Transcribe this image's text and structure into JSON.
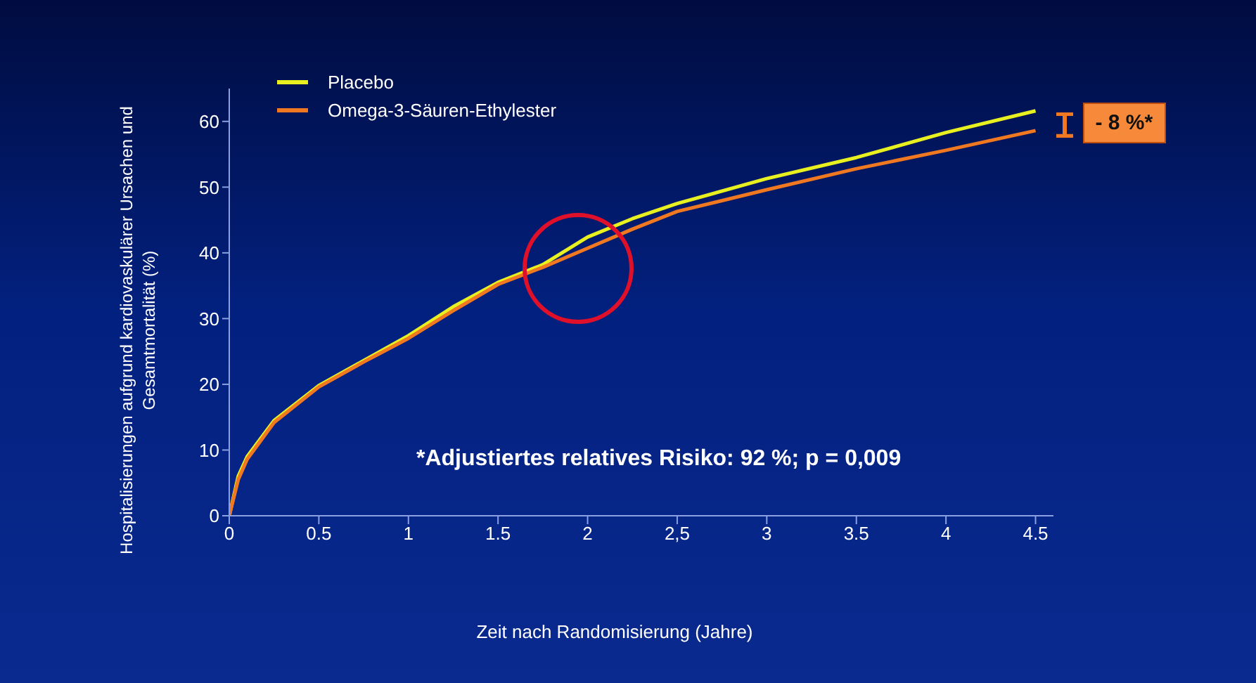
{
  "chart_data": {
    "type": "line",
    "xlabel": "Zeit nach Randomisierung (Jahre)",
    "ylabel": "Hospitalisierungen aufgrund kardiovaskulärer Ursachen und Gesamtmortalität (%)",
    "x": [
      0,
      0.05,
      0.1,
      0.25,
      0.5,
      0.75,
      1,
      1.25,
      1.5,
      1.75,
      2,
      2.25,
      2.5,
      3,
      3.5,
      4,
      4.5
    ],
    "series": [
      {
        "name": "Placebo",
        "color": "#e8f020",
        "values": [
          0,
          6,
          9,
          14.5,
          19.8,
          23.6,
          27.4,
          31.8,
          35.5,
          38.2,
          42.4,
          45.2,
          47.5,
          51.3,
          54.5,
          58.3,
          61.6
        ]
      },
      {
        "name": "Omega-3-Säuren-Ethylester",
        "color": "#f07820",
        "values": [
          0,
          5.5,
          8.6,
          14.2,
          19.6,
          23.4,
          27,
          31.2,
          35.2,
          37.8,
          40.7,
          43.6,
          46.3,
          49.6,
          52.8,
          55.6,
          58.6
        ]
      }
    ],
    "xlim": [
      0,
      4.6
    ],
    "xticks": [
      0,
      {
        "value": 0.5,
        "label": "0.5"
      },
      1,
      {
        "value": 1.5,
        "label": "1.5"
      },
      2,
      {
        "value": 2.5,
        "label": "2,5"
      },
      3,
      {
        "value": 3.5,
        "label": "3.5"
      },
      4,
      {
        "value": 4.5,
        "label": "4.5"
      }
    ],
    "ylim": [
      0,
      65
    ],
    "yticks": [
      0,
      10,
      20,
      30,
      40,
      50,
      60
    ],
    "legend": "top left",
    "grid": false,
    "marker": "none",
    "line_style": "solid",
    "annotations": [
      "- 8 %*",
      "*Adjustiertes relatives Risiko: 92 %; p = 0,009"
    ]
  }
}
